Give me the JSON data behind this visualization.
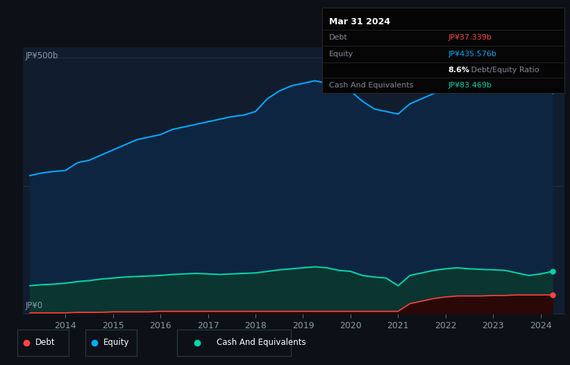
{
  "bg_color": "#0d1117",
  "plot_bg_color": "#111d2e",
  "grid_color": "#1a2e42",
  "years": [
    2013.25,
    2013.5,
    2013.75,
    2014.0,
    2014.25,
    2014.5,
    2014.75,
    2015.0,
    2015.25,
    2015.5,
    2015.75,
    2016.0,
    2016.25,
    2016.5,
    2016.75,
    2017.0,
    2017.25,
    2017.5,
    2017.75,
    2018.0,
    2018.25,
    2018.5,
    2018.75,
    2019.0,
    2019.25,
    2019.5,
    2019.75,
    2020.0,
    2020.25,
    2020.5,
    2020.75,
    2021.0,
    2021.25,
    2021.5,
    2021.75,
    2022.0,
    2022.25,
    2022.5,
    2022.75,
    2023.0,
    2023.25,
    2023.5,
    2023.75,
    2024.0,
    2024.25
  ],
  "equity": [
    270,
    275,
    278,
    280,
    295,
    300,
    310,
    320,
    330,
    340,
    345,
    350,
    360,
    365,
    370,
    375,
    380,
    385,
    388,
    395,
    420,
    435,
    445,
    450,
    455,
    450,
    440,
    435,
    415,
    400,
    395,
    390,
    410,
    420,
    430,
    435,
    440,
    445,
    450,
    455,
    460,
    455,
    450,
    445,
    435
  ],
  "cash": [
    55,
    57,
    58,
    60,
    63,
    65,
    68,
    70,
    72,
    73,
    74,
    75,
    77,
    78,
    79,
    78,
    77,
    78,
    79,
    80,
    83,
    86,
    88,
    90,
    92,
    90,
    85,
    83,
    75,
    72,
    70,
    55,
    75,
    80,
    85,
    88,
    90,
    88,
    87,
    86,
    85,
    80,
    75,
    78,
    83
  ],
  "debt": [
    2,
    2,
    2,
    2,
    3,
    3,
    3,
    4,
    4,
    4,
    4,
    5,
    5,
    5,
    5,
    5,
    5,
    5,
    5,
    5,
    5,
    5,
    5,
    5,
    5,
    5,
    5,
    5,
    5,
    5,
    5,
    5,
    20,
    25,
    30,
    33,
    35,
    35,
    35,
    36,
    36,
    37,
    37,
    37,
    37
  ],
  "equity_color": "#00aaff",
  "equity_fill": "#0d2540",
  "cash_color": "#00d4aa",
  "cash_fill": "#0a3530",
  "debt_color": "#ff4444",
  "debt_fill": "#2a0808",
  "ylabel_500": "JP¥500b",
  "ylabel_0": "JP¥0",
  "xticks": [
    2014,
    2015,
    2016,
    2017,
    2018,
    2019,
    2020,
    2021,
    2022,
    2023,
    2024
  ],
  "tooltip_title": "Mar 31 2024",
  "tooltip_debt_label": "Debt",
  "tooltip_debt_value": "JP¥37.339b",
  "tooltip_equity_label": "Equity",
  "tooltip_equity_value": "JP¥435.576b",
  "tooltip_ratio": "8.6%",
  "tooltip_ratio_label": " Debt/Equity Ratio",
  "tooltip_cash_label": "Cash And Equivalents",
  "tooltip_cash_value": "JP¥83.469b",
  "legend_items": [
    "Debt",
    "Equity",
    "Cash And Equivalents"
  ],
  "ylim": [
    0,
    520
  ],
  "xlim_start": 2013.1,
  "xlim_end": 2024.5
}
